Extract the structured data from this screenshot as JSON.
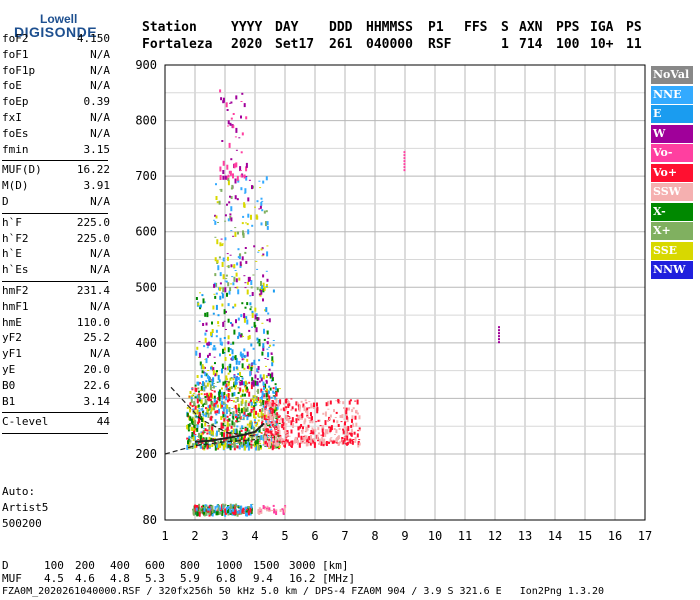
{
  "logo": {
    "line1": "Lowell",
    "line2": "DIGISONDE"
  },
  "header": {
    "labels": [
      "Station",
      "YYYY",
      "DAY",
      "DDD",
      "HHMMSS",
      "P1",
      "FFS",
      "S",
      "AXN",
      "PPS",
      "IGA",
      "PS"
    ],
    "values": [
      "Fortaleza",
      "2020",
      "Set17",
      "261",
      "040000",
      "RSF",
      "",
      "1",
      "714",
      "100",
      "10+",
      "11"
    ]
  },
  "params": [
    {
      "group": 0,
      "name": "foF2",
      "value": "4.150"
    },
    {
      "group": 0,
      "name": "foF1",
      "value": "N/A"
    },
    {
      "group": 0,
      "name": "foF1p",
      "value": "N/A"
    },
    {
      "group": 0,
      "name": "foE",
      "value": "N/A"
    },
    {
      "group": 0,
      "name": "foEp",
      "value": "0.39"
    },
    {
      "group": 0,
      "name": "fxI",
      "value": "N/A"
    },
    {
      "group": 0,
      "name": "foEs",
      "value": "N/A"
    },
    {
      "group": 0,
      "name": "fmin",
      "value": "3.15"
    },
    {
      "group": 1,
      "name": "MUF(D)",
      "value": "16.22"
    },
    {
      "group": 1,
      "name": "M(D)",
      "value": "3.91"
    },
    {
      "group": 1,
      "name": "D",
      "value": "N/A"
    },
    {
      "group": 2,
      "name": "h`F",
      "value": "225.0"
    },
    {
      "group": 2,
      "name": "h`F2",
      "value": "225.0"
    },
    {
      "group": 2,
      "name": "h`E",
      "value": "N/A"
    },
    {
      "group": 2,
      "name": "h`Es",
      "value": "N/A"
    },
    {
      "group": 3,
      "name": "hmF2",
      "value": "231.4"
    },
    {
      "group": 3,
      "name": "hmF1",
      "value": "N/A"
    },
    {
      "group": 3,
      "name": "hmE",
      "value": "110.0"
    },
    {
      "group": 3,
      "name": "yF2",
      "value": "25.2"
    },
    {
      "group": 3,
      "name": "yF1",
      "value": "N/A"
    },
    {
      "group": 3,
      "name": "yE",
      "value": "20.0"
    },
    {
      "group": 3,
      "name": "B0",
      "value": "22.6"
    },
    {
      "group": 3,
      "name": "B1",
      "value": "3.14"
    },
    {
      "group": 4,
      "name": "C-level",
      "value": "44"
    }
  ],
  "auto": {
    "line1": "Auto:",
    "line2": "Artist5",
    "line3": "500200"
  },
  "legend": [
    {
      "label": "NoVal",
      "color": "#888888"
    },
    {
      "label": "NNE",
      "color": "#33aaff"
    },
    {
      "label": "E",
      "color": "#1a9cf0"
    },
    {
      "label": "W",
      "color": "#a0009a"
    },
    {
      "label": "Vo-",
      "color": "#ff3fa0"
    },
    {
      "label": "Vo+",
      "color": "#ff1030"
    },
    {
      "label": "SSW",
      "color": "#f5b0b0"
    },
    {
      "label": "X-",
      "color": "#008800"
    },
    {
      "label": "X+",
      "color": "#80b060"
    },
    {
      "label": "SSE",
      "color": "#d8d800"
    },
    {
      "label": "NNW",
      "color": "#2020dd"
    }
  ],
  "chart_data": {
    "type": "scatter",
    "xlim": [
      1,
      17
    ],
    "ylim": [
      80,
      900
    ],
    "xticks": [
      "1",
      "2",
      "3",
      "4",
      "5",
      "6",
      "7",
      "8",
      "9",
      "10",
      "11",
      "12",
      "13",
      "14",
      "15",
      "16",
      "17"
    ],
    "yticks": [
      "80",
      "200",
      "300",
      "400",
      "500",
      "600",
      "700",
      "800",
      "900"
    ],
    "grid": true,
    "clusters": [
      {
        "x": [
          1.9,
          3.9
        ],
        "y": [
          95,
          110
        ],
        "colors": [
          "#ff1030",
          "#008800",
          "#33aaff",
          "#80b060"
        ],
        "n": 260
      },
      {
        "x": [
          4.0,
          5.0
        ],
        "y": [
          98,
          108
        ],
        "colors": [
          "#f5b0b0",
          "#ff3fa0"
        ],
        "n": 30
      },
      {
        "x": [
          1.7,
          4.8
        ],
        "y": [
          215,
          330
        ],
        "colors": [
          "#ff1030",
          "#008800",
          "#80b060",
          "#33aaff",
          "#d8d800"
        ],
        "n": 900
      },
      {
        "x": [
          4.3,
          7.5
        ],
        "y": [
          220,
          300
        ],
        "colors": [
          "#f5b0b0",
          "#ff1030"
        ],
        "n": 500
      },
      {
        "x": [
          2.0,
          4.6
        ],
        "y": [
          330,
          500
        ],
        "colors": [
          "#33aaff",
          "#a0009a",
          "#d8d800",
          "#008800",
          "#1a9cf0"
        ],
        "n": 320
      },
      {
        "x": [
          2.6,
          4.4
        ],
        "y": [
          500,
          700
        ],
        "colors": [
          "#d8d800",
          "#33aaff",
          "#a0009a",
          "#80b060"
        ],
        "n": 170
      },
      {
        "x": [
          2.8,
          3.7
        ],
        "y": [
          700,
          860
        ],
        "colors": [
          "#a0009a",
          "#ff3fa0"
        ],
        "n": 55
      }
    ],
    "isolated": [
      {
        "x": 8.95,
        "y": [
          712,
          745
        ],
        "color": "#ff3fa0"
      },
      {
        "x": 12.1,
        "y": [
          400,
          430
        ],
        "color": "#a0009a"
      }
    ],
    "traces": [
      {
        "style": "dashed",
        "points": [
          [
            1.2,
            320
          ],
          [
            2.2,
            262
          ],
          [
            3.1,
            238
          ],
          [
            4.15,
            231.4
          ]
        ]
      },
      {
        "style": "dashed",
        "points": [
          [
            1.0,
            200
          ],
          [
            2.0,
            215
          ],
          [
            3.0,
            222
          ],
          [
            4.0,
            226
          ]
        ]
      },
      {
        "style": "solid",
        "points": [
          [
            2.0,
            222
          ],
          [
            2.5,
            224
          ],
          [
            3.0,
            228
          ],
          [
            3.5,
            233
          ],
          [
            4.0,
            240
          ],
          [
            4.3,
            255
          ]
        ]
      }
    ]
  },
  "mufd_table": {
    "d_label": "D",
    "d_values": [
      "100",
      "200",
      "400",
      "600",
      "800",
      "1000",
      "1500",
      "3000"
    ],
    "d_unit": "[km]",
    "muf_label": "MUF",
    "muf_values": [
      "4.5",
      "4.6",
      "4.8",
      "5.3",
      "5.9",
      "6.8",
      "9.4",
      "16.2"
    ],
    "muf_unit": "[MHz]"
  },
  "footer": "FZA0M_2020261040000.RSF / 320fx256h 50 kHz 5.0 km / DPS-4 FZA0M 904 / 3.9 S 321.6 E   Ion2Png 1.3.20"
}
